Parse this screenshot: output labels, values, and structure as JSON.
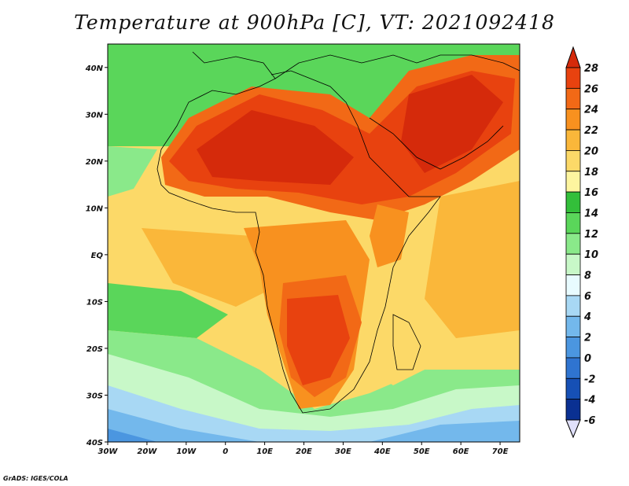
{
  "title": "Temperature at 900hPa [C], VT: 2021092418",
  "credit": "GrADS: IGES/COLA",
  "map": {
    "projection": "latlon",
    "lon_range": [
      -30,
      75
    ],
    "lat_range": [
      -40,
      45
    ],
    "x_ticks": [
      "30W",
      "20W",
      "10W",
      "0",
      "10E",
      "20E",
      "30E",
      "40E",
      "50E",
      "60E",
      "70E"
    ],
    "y_ticks": [
      "40N",
      "30N",
      "20N",
      "10N",
      "EQ",
      "10S",
      "20S",
      "30S",
      "40S"
    ]
  },
  "colorbar": {
    "levels": [
      "28",
      "26",
      "24",
      "22",
      "20",
      "18",
      "16",
      "14",
      "12",
      "10",
      "8",
      "6",
      "4",
      "2",
      "0",
      "-2",
      "-4",
      "-6"
    ],
    "colors": [
      "#e8420f",
      "#f26916",
      "#f8911f",
      "#fab73a",
      "#fcd968",
      "#fdf59f",
      "#33bf3a",
      "#5ad65a",
      "#8ae98a",
      "#c8f8c8",
      "#e8fbff",
      "#a8d8f4",
      "#73b8ec",
      "#4b96e0",
      "#2f74d0",
      "#1650b5",
      "#0a3092",
      "#061a66"
    ],
    "top_color": "#d52a0b",
    "bottom_color": "#e0e0fa"
  }
}
